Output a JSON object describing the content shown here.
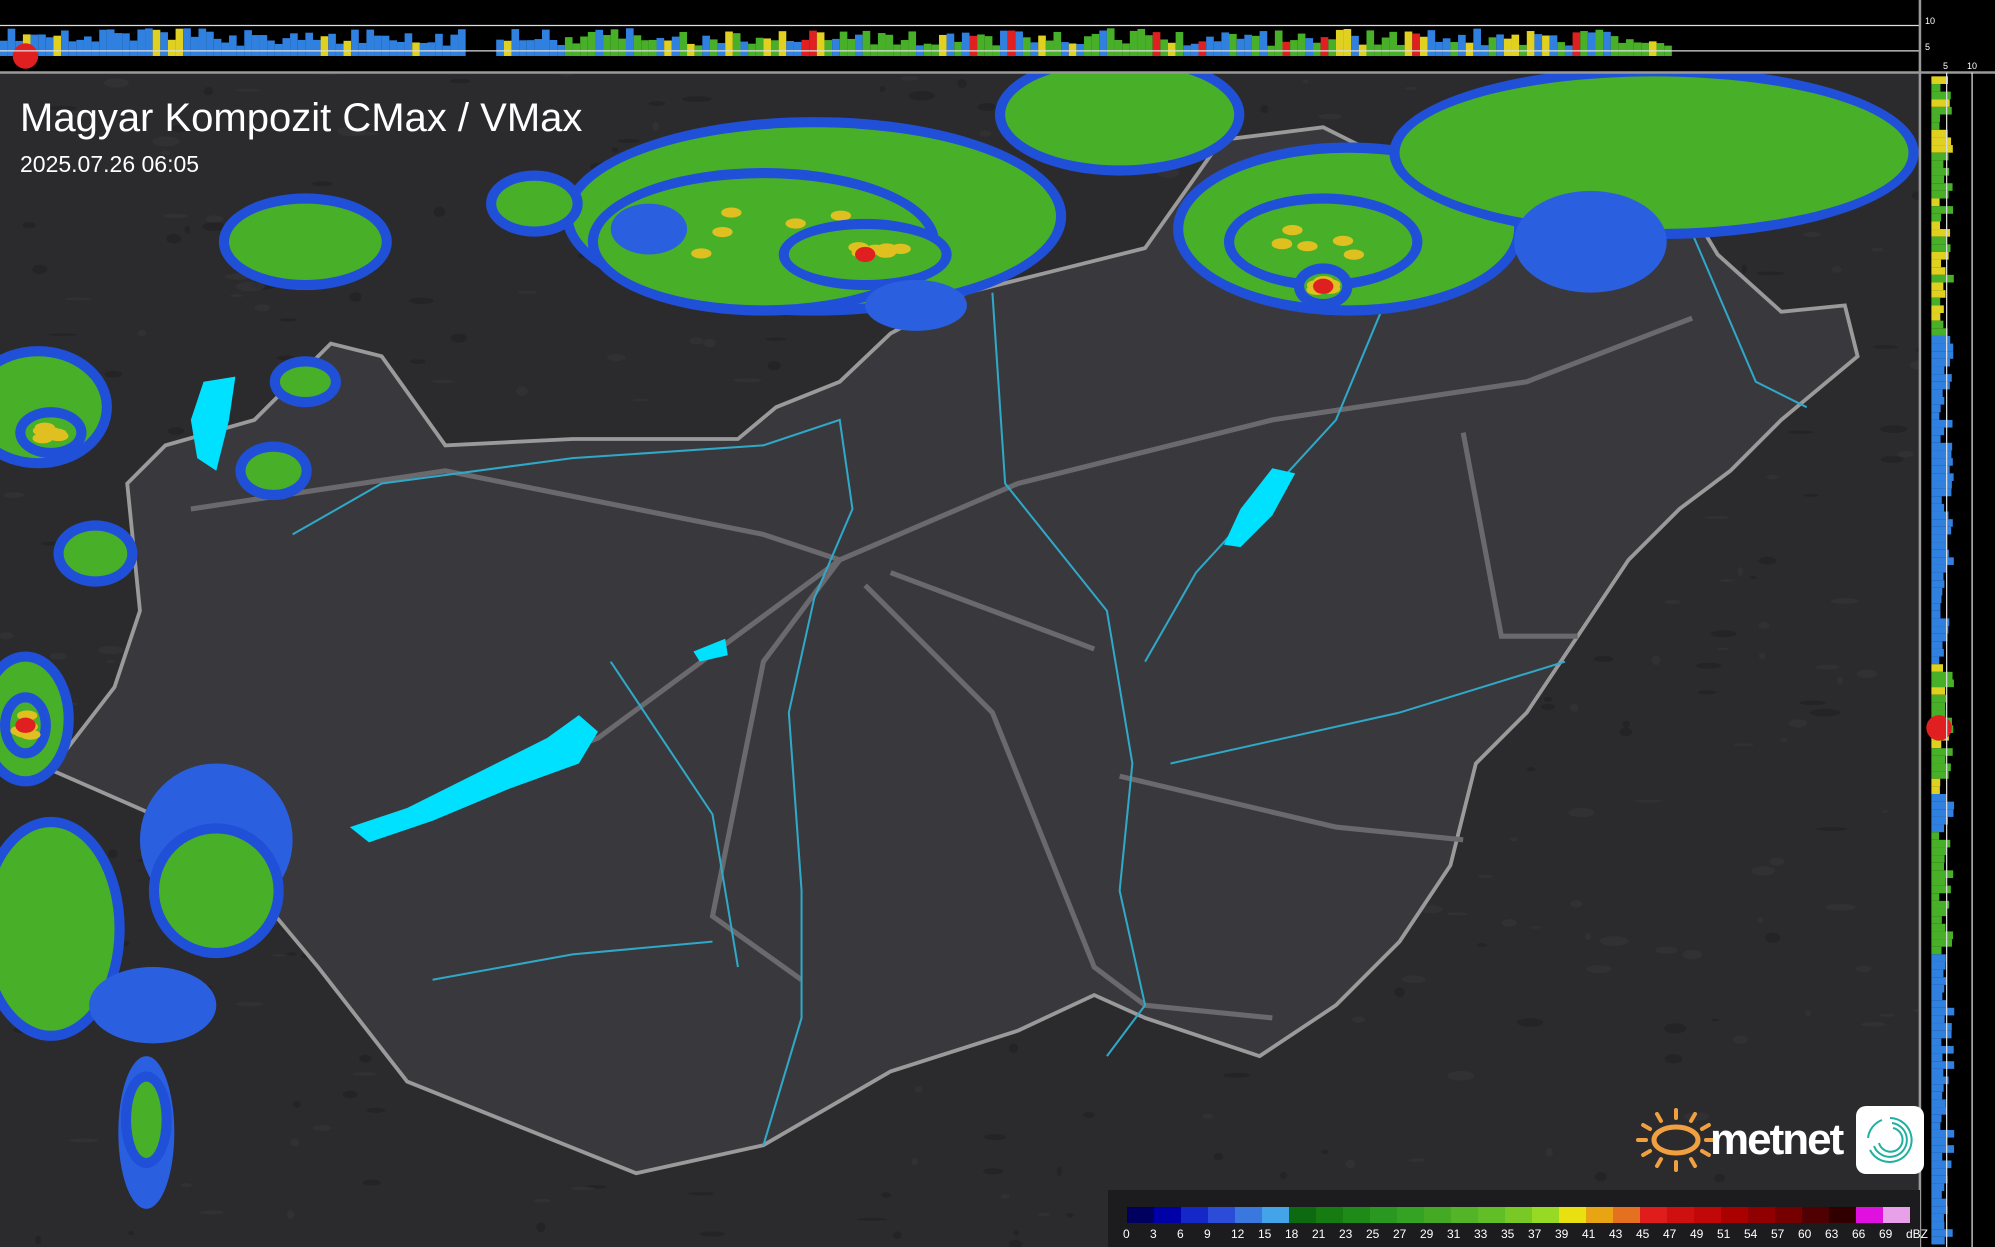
{
  "header": {
    "title": "Magyar Kompozit CMax / VMax",
    "timestamp": "2025.07.26 06:05"
  },
  "top_profile_axis": {
    "ticks": [
      "10",
      "5"
    ]
  },
  "side_profile_axis": {
    "ticks": [
      "5",
      "10"
    ]
  },
  "legend": {
    "unit": "dBZ",
    "labels": [
      "0",
      "3",
      "6",
      "9",
      "12",
      "15",
      "18",
      "21",
      "23",
      "25",
      "27",
      "29",
      "31",
      "33",
      "35",
      "37",
      "39",
      "41",
      "43",
      "45",
      "47",
      "49",
      "51",
      "54",
      "57",
      "60",
      "63",
      "66",
      "69"
    ],
    "colors": [
      "#00005e",
      "#0000a8",
      "#1428c8",
      "#2a4cd8",
      "#3a78e0",
      "#44a4e8",
      "#0e6a10",
      "#167c12",
      "#1e8a18",
      "#289820",
      "#34a222",
      "#44aa24",
      "#52b426",
      "#62be26",
      "#78c826",
      "#96da24",
      "#e8e010",
      "#e8a412",
      "#e47020",
      "#e01c1c",
      "#d01010",
      "#c00808",
      "#aa0000",
      "#900000",
      "#760000",
      "#500000",
      "#300000",
      "#e010e0",
      "#e8a0e8",
      "#90e8e8"
    ]
  },
  "branding": {
    "name": "metnet",
    "sun_color": "#f0a040",
    "swirl_color": "#20b0a0"
  },
  "map_colors": {
    "background": "#2a2a2d",
    "lake": "#00e0ff",
    "river": "#30a8c8",
    "border": "#9a9a9a"
  }
}
